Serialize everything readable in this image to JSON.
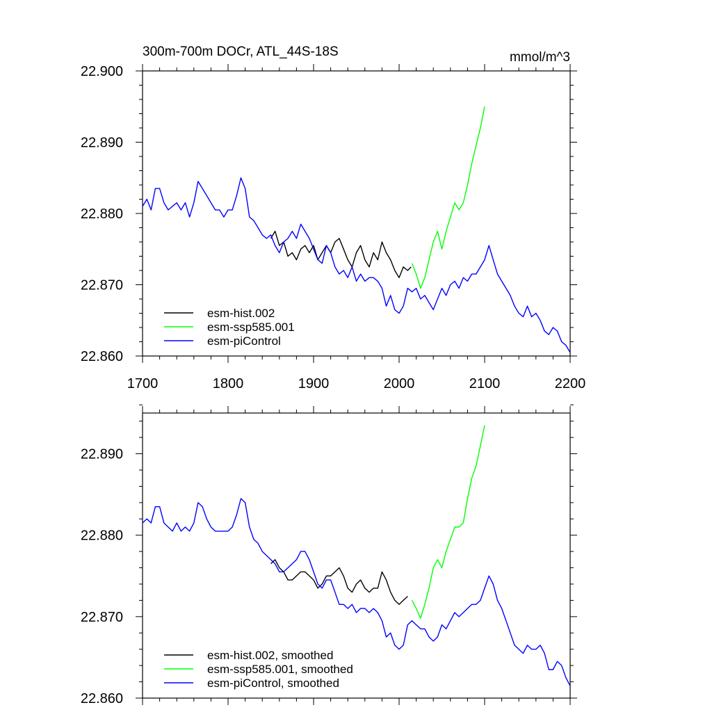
{
  "chart_data": [
    {
      "type": "line",
      "title": "300m-700m DOCr, ATL_44S-18S",
      "units": "mmol/m^3",
      "xlim": [
        1700,
        2200
      ],
      "ylim": [
        22.86,
        22.9
      ],
      "x_ticks": [
        1700,
        1800,
        1900,
        2000,
        2100,
        2200
      ],
      "x_tick_labels": [
        "1700",
        "1800",
        "1900",
        "2000",
        "2100",
        "2200"
      ],
      "y_ticks": [
        22.86,
        22.87,
        22.88,
        22.89,
        22.9
      ],
      "y_tick_labels": [
        "22.860",
        "22.870",
        "22.880",
        "22.890",
        "22.900"
      ],
      "legend_position": "bottom-left",
      "series": [
        {
          "name": "esm-hist.002",
          "color": "#000000",
          "x": [
            1850,
            1855,
            1860,
            1865,
            1870,
            1875,
            1880,
            1885,
            1890,
            1895,
            1900,
            1905,
            1910,
            1915,
            1920,
            1925,
            1930,
            1935,
            1940,
            1945,
            1950,
            1955,
            1960,
            1965,
            1970,
            1975,
            1980,
            1985,
            1990,
            1995,
            2000,
            2005,
            2010,
            2014
          ],
          "y": [
            22.8765,
            22.8775,
            22.8755,
            22.876,
            22.874,
            22.8745,
            22.8735,
            22.875,
            22.8755,
            22.8745,
            22.8755,
            22.8735,
            22.8745,
            22.8755,
            22.8745,
            22.876,
            22.8765,
            22.875,
            22.8735,
            22.8725,
            22.8745,
            22.8755,
            22.8735,
            22.8725,
            22.8745,
            22.8735,
            22.876,
            22.8745,
            22.8735,
            22.872,
            22.871,
            22.8725,
            22.872,
            22.8725
          ]
        },
        {
          "name": "esm-ssp585.001",
          "color": "#00ff00",
          "x": [
            2015,
            2020,
            2025,
            2030,
            2035,
            2040,
            2045,
            2050,
            2055,
            2060,
            2065,
            2070,
            2075,
            2080,
            2085,
            2090,
            2095,
            2100
          ],
          "y": [
            22.873,
            22.8715,
            22.8695,
            22.871,
            22.8735,
            22.876,
            22.8775,
            22.875,
            22.8775,
            22.8795,
            22.8815,
            22.8805,
            22.8815,
            22.884,
            22.887,
            22.8895,
            22.892,
            22.895
          ]
        },
        {
          "name": "esm-piControl",
          "color": "#0000ff",
          "x": [
            1700,
            1705,
            1710,
            1715,
            1720,
            1725,
            1730,
            1735,
            1740,
            1745,
            1750,
            1755,
            1760,
            1765,
            1770,
            1775,
            1780,
            1785,
            1790,
            1795,
            1800,
            1805,
            1810,
            1815,
            1820,
            1825,
            1830,
            1835,
            1840,
            1845,
            1850,
            1855,
            1860,
            1865,
            1870,
            1875,
            1880,
            1885,
            1890,
            1895,
            1900,
            1905,
            1910,
            1915,
            1920,
            1925,
            1930,
            1935,
            1940,
            1945,
            1950,
            1955,
            1960,
            1965,
            1970,
            1975,
            1980,
            1985,
            1990,
            1995,
            2000,
            2005,
            2010,
            2015,
            2020,
            2025,
            2030,
            2035,
            2040,
            2045,
            2050,
            2055,
            2060,
            2065,
            2070,
            2075,
            2080,
            2085,
            2090,
            2095,
            2100,
            2105,
            2110,
            2115,
            2120,
            2125,
            2130,
            2135,
            2140,
            2145,
            2150,
            2155,
            2160,
            2165,
            2170,
            2175,
            2180,
            2185,
            2190,
            2195,
            2200
          ],
          "y": [
            22.881,
            22.882,
            22.8805,
            22.8835,
            22.8835,
            22.8815,
            22.8805,
            22.881,
            22.8815,
            22.8805,
            22.8815,
            22.8795,
            22.8815,
            22.8845,
            22.8835,
            22.8825,
            22.8815,
            22.8805,
            22.8805,
            22.8795,
            22.8805,
            22.8805,
            22.8825,
            22.885,
            22.8835,
            22.8795,
            22.879,
            22.878,
            22.877,
            22.8765,
            22.877,
            22.8755,
            22.8745,
            22.876,
            22.8765,
            22.8775,
            22.8765,
            22.8785,
            22.8775,
            22.8765,
            22.875,
            22.8735,
            22.873,
            22.8755,
            22.8745,
            22.8725,
            22.8715,
            22.872,
            22.871,
            22.8725,
            22.8705,
            22.8715,
            22.8705,
            22.871,
            22.871,
            22.8705,
            22.8695,
            22.867,
            22.8685,
            22.8665,
            22.866,
            22.867,
            22.8695,
            22.869,
            22.8695,
            22.868,
            22.8685,
            22.8675,
            22.8665,
            22.868,
            22.8695,
            22.8685,
            22.87,
            22.8705,
            22.8695,
            22.871,
            22.8705,
            22.8715,
            22.8715,
            22.8725,
            22.8735,
            22.8755,
            22.8735,
            22.8715,
            22.8705,
            22.8695,
            22.8685,
            22.867,
            22.866,
            22.8655,
            22.867,
            22.8655,
            22.866,
            22.865,
            22.8635,
            22.863,
            22.864,
            22.8635,
            22.862,
            22.8615,
            22.8605
          ]
        }
      ]
    },
    {
      "type": "line",
      "xlim": [
        1700,
        2200
      ],
      "ylim": [
        22.86,
        22.895
      ],
      "x_ticks": [
        1700,
        1800,
        1900,
        2000,
        2100,
        2200
      ],
      "y_ticks": [
        22.86,
        22.87,
        22.88,
        22.89
      ],
      "y_tick_labels": [
        "22.860",
        "22.870",
        "22.880",
        "22.890"
      ],
      "legend_position": "bottom-left",
      "series": [
        {
          "name": "esm-hist.002, smoothed",
          "color": "#000000",
          "x": [
            1850,
            1855,
            1860,
            1865,
            1870,
            1875,
            1880,
            1885,
            1890,
            1895,
            1900,
            1905,
            1910,
            1915,
            1920,
            1925,
            1930,
            1935,
            1940,
            1945,
            1950,
            1955,
            1960,
            1965,
            1970,
            1975,
            1980,
            1985,
            1990,
            1995,
            2000,
            2005,
            2010
          ],
          "y": [
            22.8765,
            22.877,
            22.876,
            22.8755,
            22.8745,
            22.8745,
            22.875,
            22.8755,
            22.8755,
            22.875,
            22.8745,
            22.8735,
            22.874,
            22.875,
            22.875,
            22.8755,
            22.876,
            22.875,
            22.8735,
            22.873,
            22.874,
            22.8745,
            22.8735,
            22.873,
            22.8735,
            22.8735,
            22.8755,
            22.8745,
            22.873,
            22.872,
            22.8715,
            22.872,
            22.8725
          ]
        },
        {
          "name": "esm-ssp585.001, smoothed",
          "color": "#00ff00",
          "x": [
            2015,
            2020,
            2025,
            2030,
            2035,
            2040,
            2045,
            2050,
            2055,
            2060,
            2065,
            2070,
            2075,
            2080,
            2085,
            2090,
            2095,
            2100
          ],
          "y": [
            22.872,
            22.871,
            22.8698,
            22.8715,
            22.8735,
            22.876,
            22.877,
            22.876,
            22.878,
            22.8795,
            22.881,
            22.881,
            22.8815,
            22.8845,
            22.887,
            22.8885,
            22.891,
            22.8935
          ]
        },
        {
          "name": "esm-piControl, smoothed",
          "color": "#0000ff",
          "x": [
            1700,
            1705,
            1710,
            1715,
            1720,
            1725,
            1730,
            1735,
            1740,
            1745,
            1750,
            1755,
            1760,
            1765,
            1770,
            1775,
            1780,
            1785,
            1790,
            1795,
            1800,
            1805,
            1810,
            1815,
            1820,
            1825,
            1830,
            1835,
            1840,
            1845,
            1850,
            1855,
            1860,
            1865,
            1870,
            1875,
            1880,
            1885,
            1890,
            1895,
            1900,
            1905,
            1910,
            1915,
            1920,
            1925,
            1930,
            1935,
            1940,
            1945,
            1950,
            1955,
            1960,
            1965,
            1970,
            1975,
            1980,
            1985,
            1990,
            1995,
            2000,
            2005,
            2010,
            2015,
            2020,
            2025,
            2030,
            2035,
            2040,
            2045,
            2050,
            2055,
            2060,
            2065,
            2070,
            2075,
            2080,
            2085,
            2090,
            2095,
            2100,
            2105,
            2110,
            2115,
            2120,
            2125,
            2130,
            2135,
            2140,
            2145,
            2150,
            2155,
            2160,
            2165,
            2170,
            2175,
            2180,
            2185,
            2190,
            2195,
            2200
          ],
          "y": [
            22.8815,
            22.882,
            22.8815,
            22.8835,
            22.8835,
            22.8815,
            22.881,
            22.8805,
            22.8815,
            22.8805,
            22.881,
            22.8805,
            22.8815,
            22.884,
            22.8835,
            22.882,
            22.881,
            22.8805,
            22.8805,
            22.8805,
            22.8805,
            22.881,
            22.8825,
            22.8845,
            22.884,
            22.881,
            22.8795,
            22.879,
            22.878,
            22.8775,
            22.877,
            22.8765,
            22.8755,
            22.8755,
            22.876,
            22.8765,
            22.877,
            22.878,
            22.878,
            22.877,
            22.8755,
            22.874,
            22.8735,
            22.8745,
            22.8745,
            22.873,
            22.8715,
            22.8715,
            22.871,
            22.8715,
            22.8705,
            22.871,
            22.871,
            22.8705,
            22.871,
            22.8705,
            22.8695,
            22.8675,
            22.868,
            22.8665,
            22.866,
            22.8665,
            22.869,
            22.8695,
            22.869,
            22.8685,
            22.8685,
            22.8675,
            22.867,
            22.8675,
            22.869,
            22.8685,
            22.8695,
            22.8705,
            22.87,
            22.8705,
            22.871,
            22.8715,
            22.8715,
            22.872,
            22.8735,
            22.875,
            22.874,
            22.872,
            22.871,
            22.8695,
            22.868,
            22.8665,
            22.866,
            22.8655,
            22.8665,
            22.866,
            22.866,
            22.8665,
            22.8655,
            22.8635,
            22.8635,
            22.8645,
            22.864,
            22.8625,
            22.8615
          ]
        }
      ]
    }
  ]
}
